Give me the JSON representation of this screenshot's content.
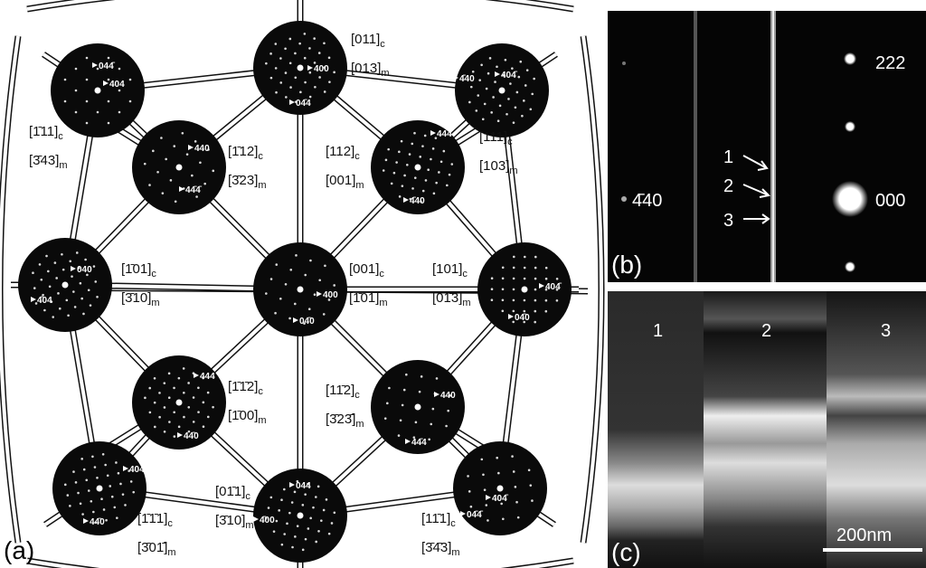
{
  "panel_a": {
    "label": "(a)",
    "patterns": [
      {
        "spots": [
          "044̄",
          "404"
        ],
        "zones": [
          {
            "index": "[1̄11]",
            "sub": "c"
          },
          {
            "index": "[3̄43]",
            "sub": "m"
          }
        ]
      },
      {
        "spots": [
          "400",
          "04̄4"
        ],
        "zones": [
          {
            "index": "[011]",
            "sub": "c"
          },
          {
            "index": "[013]",
            "sub": "m"
          }
        ]
      },
      {
        "spots": [
          "4̄40",
          "404̄"
        ],
        "zones": [
          {
            "index": "[111]",
            "sub": "c"
          },
          {
            "index": "[103]",
            "sub": "m"
          }
        ]
      },
      {
        "spots": [
          "440",
          "44̄4̄"
        ],
        "zones": [
          {
            "index": "[1̄12]",
            "sub": "c"
          },
          {
            "index": "[3̄23]",
            "sub": "m"
          }
        ]
      },
      {
        "spots": [
          "444̄",
          "4̄40"
        ],
        "zones": [
          {
            "index": "[112]",
            "sub": "c"
          },
          {
            "index": "[001]",
            "sub": "m"
          }
        ]
      },
      {
        "spots": [
          "040",
          "4̄04"
        ],
        "zones": [
          {
            "index": "[1̄01]",
            "sub": "c"
          },
          {
            "index": "[3̄10]",
            "sub": "m"
          }
        ]
      },
      {
        "spots": [
          "400",
          "04̄0"
        ],
        "zones": [
          {
            "index": "[001]",
            "sub": "c"
          },
          {
            "index": "[1̄01]",
            "sub": "m"
          }
        ]
      },
      {
        "spots": [
          "404̄",
          "04̄0"
        ],
        "zones": [
          {
            "index": "[101]",
            "sub": "c"
          },
          {
            "index": "[01̄3]",
            "sub": "m"
          }
        ]
      },
      {
        "spots": [
          "444",
          "44̄0"
        ],
        "zones": [
          {
            "index": "[1̄1̄2]",
            "sub": "c"
          },
          {
            "index": "[1̄00]",
            "sub": "m"
          }
        ]
      },
      {
        "spots": [
          "440",
          "44̄4"
        ],
        "zones": [
          {
            "index": "[11̄2]",
            "sub": "c"
          },
          {
            "index": "[3̄23̄]",
            "sub": "m"
          }
        ]
      },
      {
        "spots": [
          "404",
          "44̄0"
        ],
        "zones": [
          {
            "index": "[1̄1̄1]",
            "sub": "c"
          },
          {
            "index": "[3̄01̄]",
            "sub": "m"
          }
        ]
      },
      {
        "spots": [
          "044",
          "4̄00"
        ],
        "zones": [
          {
            "index": "[01̄1]",
            "sub": "c"
          },
          {
            "index": "[3̄10]",
            "sub": "m"
          }
        ]
      },
      {
        "spots": [
          "404̄",
          "04̄4̄"
        ],
        "zones": [
          {
            "index": "[11̄1]",
            "sub": "c"
          },
          {
            "index": "[3̄4̄3]",
            "sub": "m"
          }
        ]
      }
    ]
  },
  "panel_b": {
    "label": "(b)",
    "spots": [
      "222",
      "000",
      "4̄40"
    ],
    "markers": [
      "1",
      "2",
      "3"
    ]
  },
  "panel_c": {
    "label": "(c)",
    "strips": [
      "1",
      "2",
      "3"
    ],
    "scale_bar": "200nm"
  }
}
